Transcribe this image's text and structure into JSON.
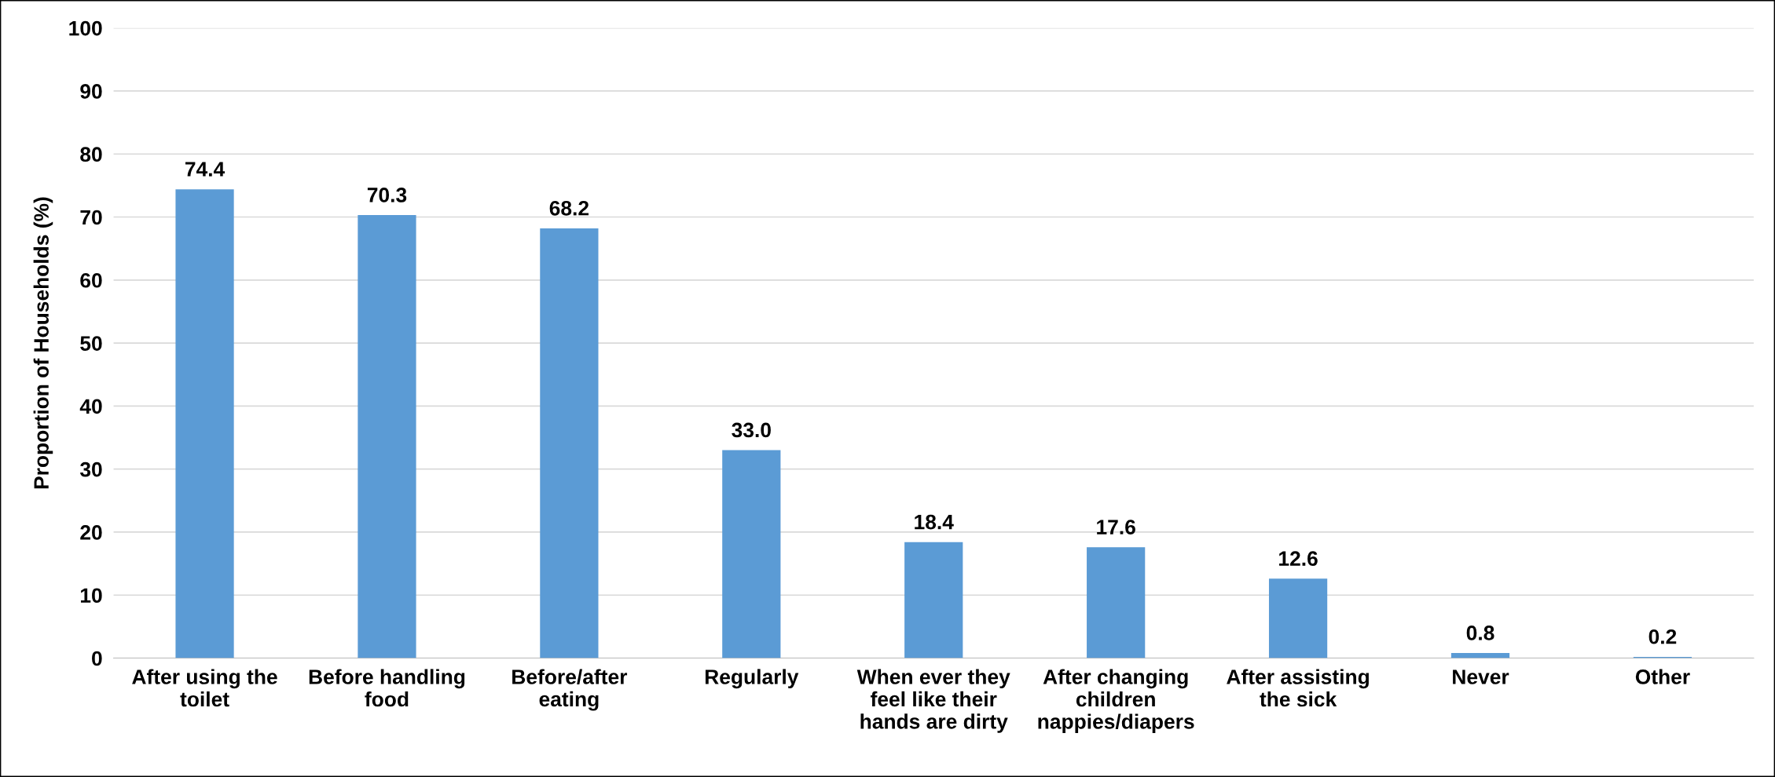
{
  "chart_data": {
    "type": "bar",
    "ylabel": "Proportion of Households (%)",
    "categories": [
      "After using the\ntoilet",
      "Before handling\nfood",
      "Before/after\neating",
      "Regularly",
      "When ever they\nfeel like their\nhands are dirty",
      "After changing\nchildren\nnappies/diapers",
      "After assisting\nthe sick",
      "Never",
      "Other"
    ],
    "values": [
      74.4,
      70.3,
      68.2,
      33.0,
      18.4,
      17.6,
      12.6,
      0.8,
      0.2
    ],
    "value_labels": [
      "74.4",
      "70.3",
      "68.2",
      "33.0",
      "18.4",
      "17.6",
      "12.6",
      "0.8",
      "0.2"
    ],
    "color": "#5b9bd5",
    "ylim": [
      0,
      100
    ],
    "yticks": [
      0,
      10,
      20,
      30,
      40,
      50,
      60,
      70,
      80,
      90,
      100
    ],
    "grid": "y"
  }
}
